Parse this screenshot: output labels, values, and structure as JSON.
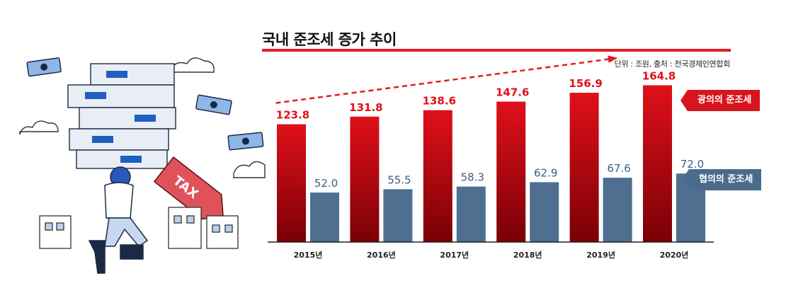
{
  "title": "국내 준조세 증가 추이",
  "source_note": "단위 : 조원, 출처 : 전국경제인연합회",
  "illustration": {
    "tag_text": "TAX",
    "icon": "taxpayer-carrying-money-icon"
  },
  "colors": {
    "broad": "#e0101a",
    "broad_dark": "#7a0006",
    "narrow": "#4e6f90",
    "accent_line": "#e31b23"
  },
  "chart_data": {
    "type": "bar",
    "categories": [
      "2015년",
      "2016년",
      "2017년",
      "2018년",
      "2019년",
      "2020년"
    ],
    "series": [
      {
        "name": "광의의 준조세",
        "values": [
          123.8,
          131.8,
          138.6,
          147.6,
          156.9,
          164.8
        ]
      },
      {
        "name": "협의의 준조세",
        "values": [
          52.0,
          55.5,
          58.3,
          62.9,
          67.6,
          72.0
        ]
      }
    ],
    "value_labels": {
      "broad": [
        "123.8",
        "131.8",
        "138.6",
        "147.6",
        "156.9",
        "164.8"
      ],
      "narrow": [
        "52.0",
        "55.5",
        "58.3",
        "62.9",
        "67.6",
        "72.0"
      ]
    },
    "ylim": [
      0,
      180
    ],
    "grid": false,
    "legend_position": "right",
    "trend_arrow": true
  }
}
